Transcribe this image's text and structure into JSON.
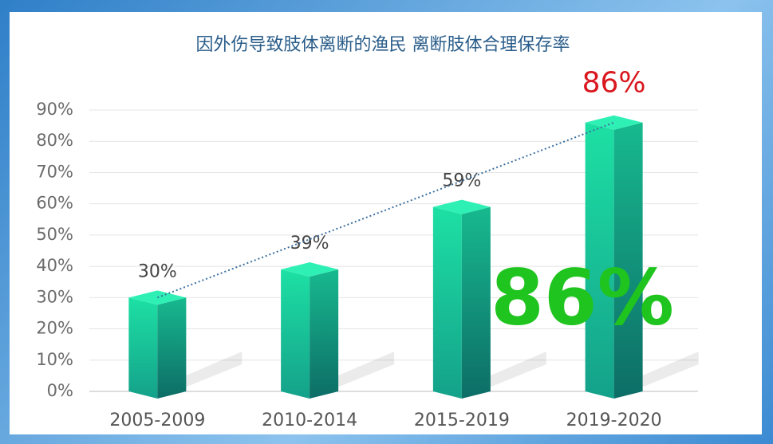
{
  "chart_data": {
    "type": "bar3d",
    "title": "因外伤导致肢体离断的渔民 离断肢体合理保存率",
    "categories": [
      "2005-2009",
      "2010-2014",
      "2015-2019",
      "2019-2020"
    ],
    "values": [
      30,
      39,
      59,
      86
    ],
    "value_labels": [
      "30%",
      "39%",
      "59%",
      "86%"
    ],
    "ylim": [
      0,
      90
    ],
    "yticks": [
      {
        "value": 0,
        "label": "0%"
      },
      {
        "value": 10,
        "label": "10%"
      },
      {
        "value": 20,
        "label": "20%"
      },
      {
        "value": 30,
        "label": "30%"
      },
      {
        "value": 40,
        "label": "40%"
      },
      {
        "value": 50,
        "label": "50%"
      },
      {
        "value": 60,
        "label": "60%"
      },
      {
        "value": 70,
        "label": "70%"
      },
      {
        "value": 80,
        "label": "80%"
      },
      {
        "value": 90,
        "label": "90%"
      }
    ],
    "grid": true,
    "trendline": true,
    "annotation": "86%"
  }
}
